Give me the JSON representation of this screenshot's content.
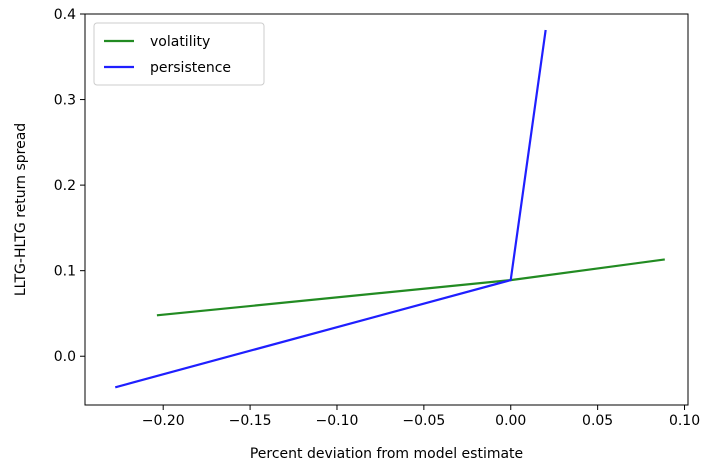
{
  "chart_data": {
    "type": "line",
    "xlabel": "Percent deviation from model estimate",
    "ylabel": "LLTG-HLTG return spread",
    "xlim": [
      -0.245,
      0.102
    ],
    "ylim": [
      -0.057,
      0.4
    ],
    "x_ticks": [
      -0.2,
      -0.15,
      -0.1,
      -0.05,
      0.0,
      0.05,
      0.1
    ],
    "x_tick_labels": [
      "−0.20",
      "−0.15",
      "−0.10",
      "−0.05",
      "0.00",
      "0.05",
      "0.10"
    ],
    "y_ticks": [
      0.0,
      0.1,
      0.2,
      0.3,
      0.4
    ],
    "y_tick_labels": [
      "0.0",
      "0.1",
      "0.2",
      "0.3",
      "0.4"
    ],
    "grid": false,
    "legend_position": "upper-left",
    "series": [
      {
        "name": "volatility",
        "color": "#228B22",
        "x": [
          -0.203,
          0.0,
          0.088
        ],
        "y": [
          0.048,
          0.089,
          0.113
        ]
      },
      {
        "name": "persistence",
        "color": "#1f1fff",
        "x": [
          -0.227,
          0.0,
          0.02
        ],
        "y": [
          -0.036,
          0.089,
          0.38
        ]
      }
    ]
  }
}
